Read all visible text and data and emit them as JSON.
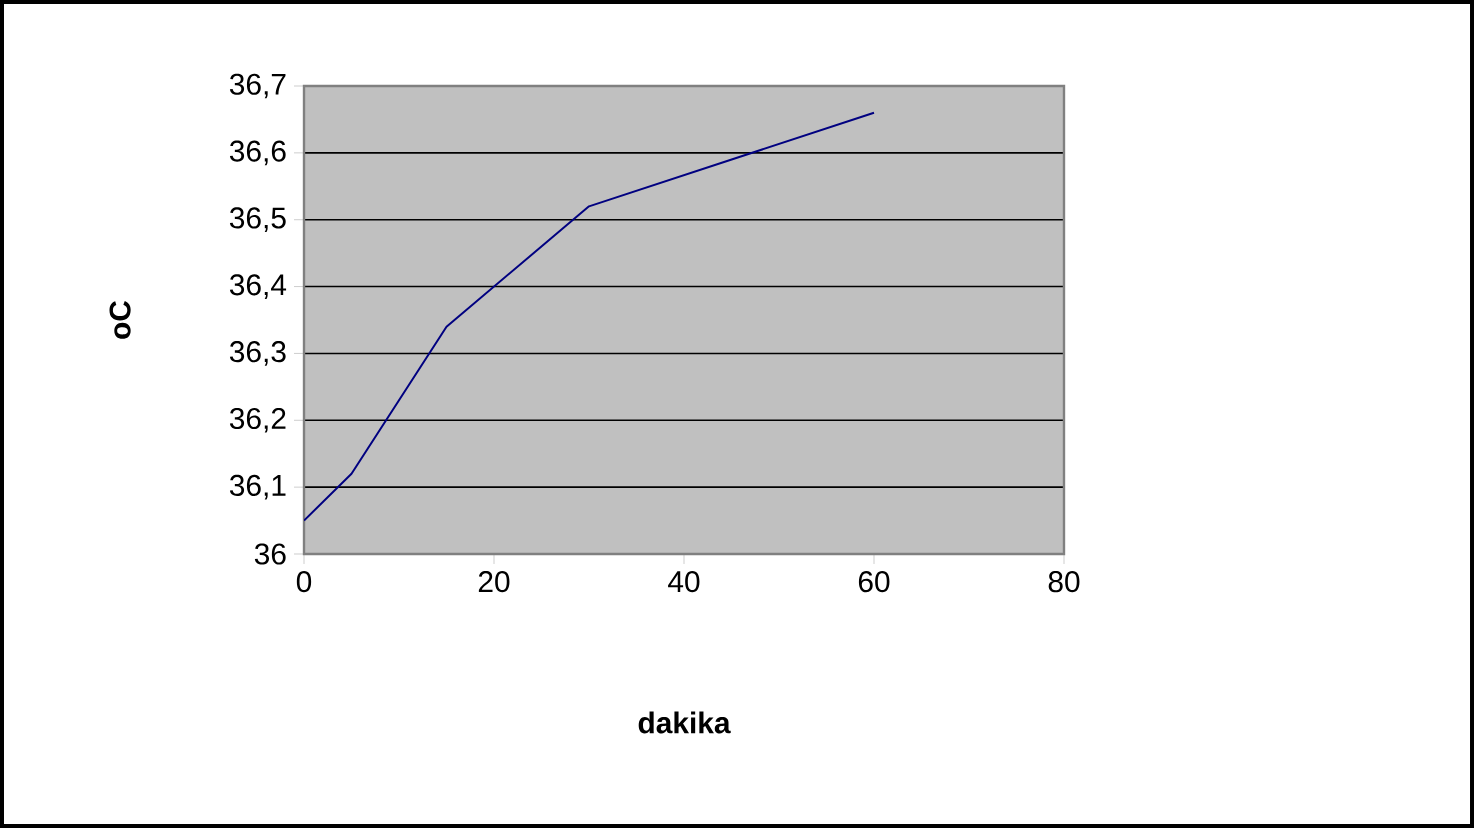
{
  "chart_data": {
    "type": "line",
    "xlabel": "dakika",
    "ylabel": "oC",
    "x": [
      0,
      5,
      15,
      30,
      60
    ],
    "series": [
      {
        "color": "#000080",
        "values": [
          36.05,
          36.12,
          36.34,
          36.52,
          36.66
        ]
      }
    ],
    "xlim": [
      0,
      80
    ],
    "xticks": [
      0,
      20,
      40,
      60,
      80
    ],
    "ylim": [
      36,
      36.7
    ],
    "yticks": [
      36,
      {
        "value": 36.1,
        "label": "36,1"
      },
      {
        "value": 36.2,
        "label": "36,2"
      },
      {
        "value": 36.3,
        "label": "36,3"
      },
      {
        "value": 36.4,
        "label": "36,4"
      },
      {
        "value": 36.5,
        "label": "36,5"
      },
      {
        "value": 36.6,
        "label": "36,6"
      },
      {
        "value": 36.7,
        "label": "36,7"
      }
    ],
    "grid": "y",
    "marker": "none",
    "line_style": "solid"
  }
}
